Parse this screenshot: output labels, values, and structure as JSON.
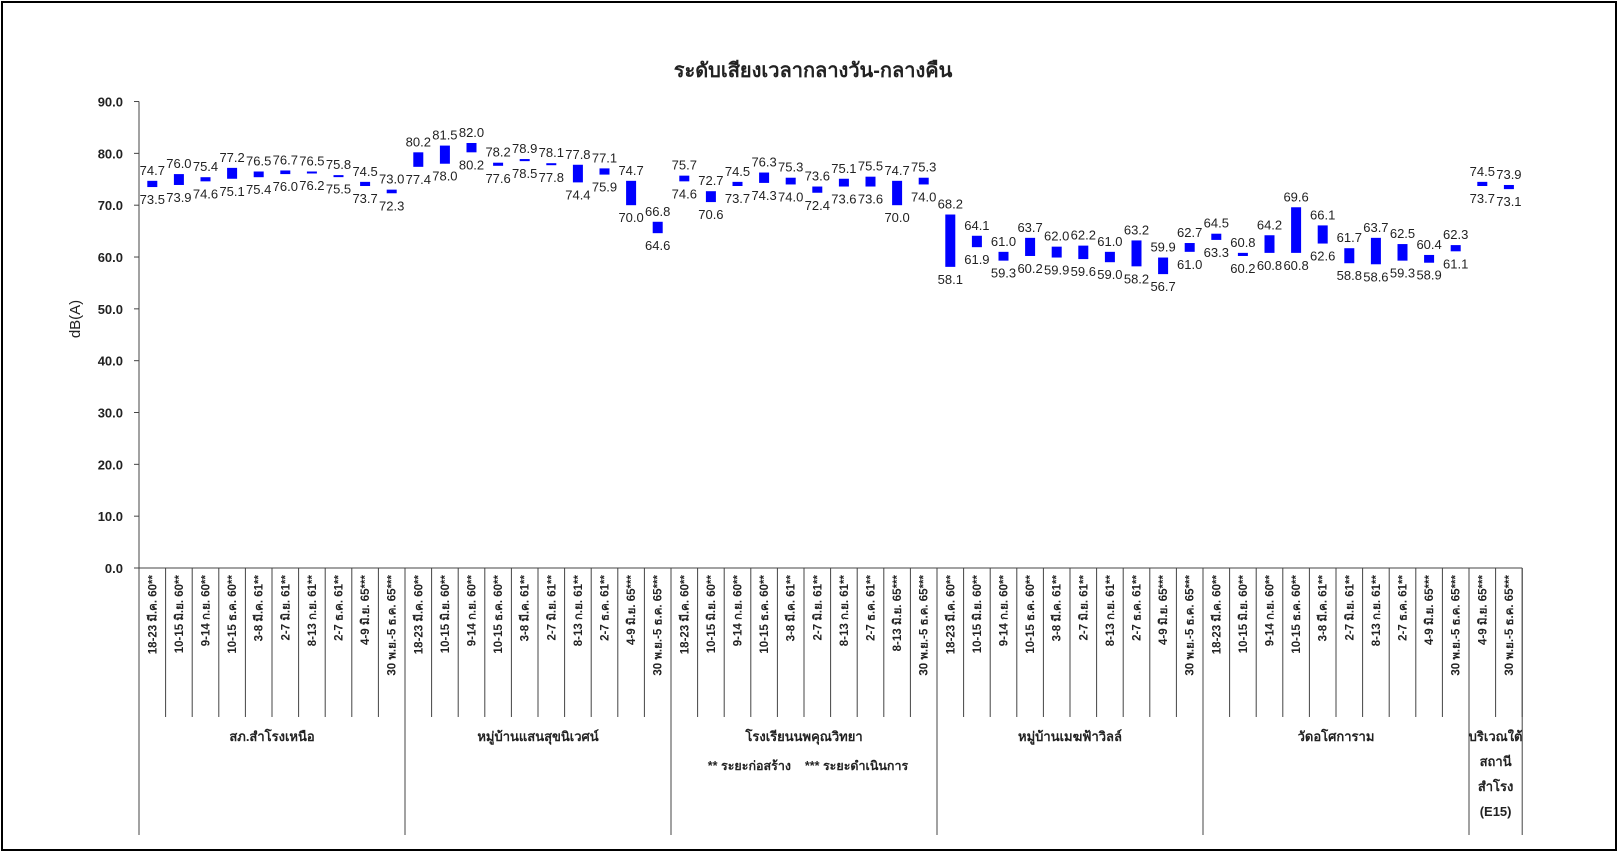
{
  "chart_data": {
    "type": "bar",
    "subtype": "floating-range",
    "title": "ระดับเสียงเวลากลางวัน-กลางคืน",
    "ylabel": "dB(A)",
    "xlabel": "",
    "ylim": [
      0,
      90
    ],
    "yticks": [
      "0.0",
      "10.0",
      "20.0",
      "30.0",
      "40.0",
      "50.0",
      "60.0",
      "70.0",
      "80.0",
      "90.0"
    ],
    "bar_color": "#0000FF",
    "grid": false,
    "legend": "none",
    "note": "** ระยะก่อสร้าง    *** ระยะดำเนินการ",
    "groups": [
      {
        "name": "สภ.สำโรงเหนือ",
        "categories": [
          "18-23 มี.ค. 60**",
          "10-15 มิ.ย. 60**",
          "9-14 ก.ย. 60**",
          "10-15 ธ.ค. 60**",
          "3-8 มี.ค. 61**",
          "2-7 มิ.ย. 61**",
          "8-13 ก.ย. 61**",
          "2-7 ธ.ค. 61**",
          "4-9 มิ.ย. 65***",
          "30 พ.ย.-5 ธ.ค. 65***"
        ],
        "high": [
          74.7,
          76.0,
          75.4,
          77.2,
          76.5,
          76.7,
          76.5,
          75.8,
          74.5,
          73.0
        ],
        "low": [
          73.5,
          73.9,
          74.6,
          75.1,
          75.4,
          76.0,
          76.2,
          75.5,
          73.7,
          72.3
        ]
      },
      {
        "name": "หมู่บ้านแสนสุขนิเวศน์",
        "categories": [
          "18-23 มี.ค. 60**",
          "10-15 มิ.ย. 60**",
          "9-14 ก.ย. 60**",
          "10-15 ธ.ค. 60**",
          "3-8 มี.ค. 61**",
          "2-7 มิ.ย. 61**",
          "8-13 ก.ย. 61**",
          "2-7 ธ.ค. 61**",
          "4-9 มิ.ย. 65***",
          "30 พ.ย.-5 ธ.ค. 65***"
        ],
        "high": [
          80.2,
          81.5,
          82.0,
          78.2,
          78.9,
          78.1,
          77.8,
          77.1,
          74.7,
          66.8
        ],
        "low": [
          77.4,
          78.0,
          80.2,
          77.6,
          78.5,
          77.8,
          74.4,
          75.9,
          70.0,
          64.6
        ]
      },
      {
        "name": "โรงเรียนนพคุณวิทยา",
        "categories": [
          "18-23 มี.ค. 60**",
          "10-15 มิ.ย. 60**",
          "9-14 ก.ย. 60**",
          "10-15 ธ.ค. 60**",
          "3-8 มี.ค. 61**",
          "2-7 มิ.ย. 61**",
          "8-13 ก.ย. 61**",
          "2-7 ธ.ค. 61**",
          "8-13 มิ.ย. 65***",
          "30 พ.ย.-5 ธ.ค. 65***"
        ],
        "high": [
          75.7,
          72.7,
          74.5,
          76.3,
          75.3,
          73.6,
          75.1,
          75.5,
          74.7,
          75.3
        ],
        "low": [
          74.6,
          70.6,
          73.7,
          74.3,
          74.0,
          72.4,
          73.6,
          73.6,
          70.0,
          74.0
        ]
      },
      {
        "name": "หมู่บ้านเมฆฟ้าวิลล์",
        "categories": [
          "18-23 มี.ค. 60**",
          "10-15 มิ.ย. 60**",
          "9-14 ก.ย. 60**",
          "10-15 ธ.ค. 60**",
          "3-8 มี.ค. 61**",
          "2-7 มิ.ย. 61**",
          "8-13 ก.ย. 61**",
          "2-7 ธ.ค. 61**",
          "4-9 มิ.ย. 65***",
          "30 พ.ย.-5 ธ.ค. 65***"
        ],
        "high": [
          68.2,
          64.1,
          61.0,
          63.7,
          62.0,
          62.2,
          61.0,
          63.2,
          59.9,
          62.7
        ],
        "low": [
          58.1,
          61.9,
          59.3,
          60.2,
          59.9,
          59.6,
          59.0,
          58.2,
          56.7,
          61.0
        ]
      },
      {
        "name": "วัดอโศการาม",
        "categories": [
          "18-23 มี.ค. 60**",
          "10-15 มิ.ย. 60**",
          "9-14 ก.ย. 60**",
          "10-15 ธ.ค. 60**",
          "3-8 มี.ค. 61**",
          "2-7 มิ.ย. 61**",
          "8-13 ก.ย. 61**",
          "2-7 ธ.ค. 61**",
          "4-9 มิ.ย. 65***",
          "30 พ.ย.-5 ธ.ค. 65***"
        ],
        "high": [
          64.5,
          60.8,
          64.2,
          69.6,
          66.1,
          61.7,
          63.7,
          62.5,
          60.4,
          62.3
        ],
        "low": [
          63.3,
          60.2,
          60.8,
          60.8,
          62.6,
          58.8,
          58.6,
          59.3,
          58.9,
          61.1
        ]
      },
      {
        "name": "บริเวณใต้ สถานี สำโรง (E15)",
        "name_lines": [
          "บริเวณใต้",
          "สถานี",
          "สำโรง",
          "(E15)"
        ],
        "categories": [
          "4-9 มิ.ย. 65***",
          "30 พ.ย.-5 ธ.ค. 65***"
        ],
        "high": [
          74.5,
          73.9
        ],
        "low": [
          73.7,
          73.1
        ]
      }
    ]
  }
}
